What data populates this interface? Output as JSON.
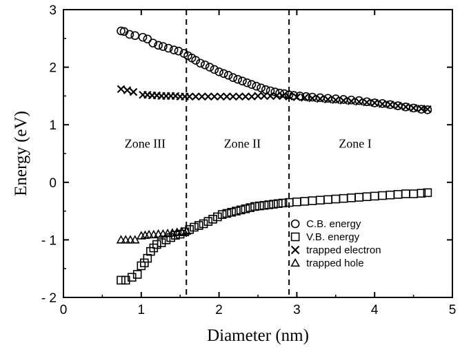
{
  "chart_data": {
    "type": "scatter",
    "xlabel": "Diameter  (nm)",
    "ylabel": "Energy (eV)",
    "xlim": [
      0,
      5
    ],
    "ylim": [
      -2,
      3
    ],
    "x_ticks": [
      "0",
      "1",
      "2",
      "3",
      "4",
      "5"
    ],
    "y_ticks": [
      "- 2",
      "- 1",
      "0",
      "1",
      "2",
      "3"
    ],
    "grid": false,
    "legend_position": "bottom-right",
    "vertical_lines": [
      1.58,
      2.9
    ],
    "annotations": [
      {
        "text": "Zone III",
        "x": 1.05,
        "y": 0.6
      },
      {
        "text": "Zone II",
        "x": 2.3,
        "y": 0.6
      },
      {
        "text": "Zone I",
        "x": 3.75,
        "y": 0.6
      }
    ],
    "series": [
      {
        "name": "C.B. energy",
        "marker": "circle",
        "x": [
          0.74,
          0.78,
          0.85,
          0.92,
          1.02,
          1.08,
          1.15,
          1.22,
          1.28,
          1.35,
          1.42,
          1.48,
          1.55,
          1.6,
          1.65,
          1.7,
          1.76,
          1.82,
          1.88,
          1.94,
          2.0,
          2.06,
          2.12,
          2.18,
          2.24,
          2.3,
          2.36,
          2.42,
          2.48,
          2.54,
          2.6,
          2.66,
          2.72,
          2.78,
          2.84,
          2.9,
          2.96,
          3.04,
          3.12,
          3.2,
          3.3,
          3.4,
          3.5,
          3.6,
          3.7,
          3.8,
          3.9,
          4.0,
          4.1,
          4.2,
          4.3,
          4.4,
          4.5,
          4.6,
          4.68
        ],
        "y": [
          2.63,
          2.62,
          2.57,
          2.55,
          2.52,
          2.49,
          2.42,
          2.38,
          2.36,
          2.33,
          2.3,
          2.28,
          2.24,
          2.2,
          2.16,
          2.12,
          2.07,
          2.04,
          2.0,
          1.96,
          1.92,
          1.89,
          1.86,
          1.82,
          1.79,
          1.76,
          1.73,
          1.7,
          1.67,
          1.64,
          1.61,
          1.59,
          1.57,
          1.55,
          1.54,
          1.52,
          1.51,
          1.5,
          1.49,
          1.48,
          1.47,
          1.46,
          1.45,
          1.44,
          1.43,
          1.42,
          1.4,
          1.38,
          1.37,
          1.35,
          1.33,
          1.31,
          1.29,
          1.27,
          1.26
        ]
      },
      {
        "name": "V.B. energy",
        "marker": "square",
        "x": [
          0.74,
          0.8,
          0.88,
          0.95,
          1.0,
          1.04,
          1.08,
          1.12,
          1.16,
          1.2,
          1.26,
          1.32,
          1.38,
          1.44,
          1.5,
          1.56,
          1.62,
          1.68,
          1.74,
          1.8,
          1.86,
          1.92,
          1.98,
          2.04,
          2.1,
          2.16,
          2.22,
          2.28,
          2.34,
          2.4,
          2.46,
          2.52,
          2.58,
          2.64,
          2.7,
          2.76,
          2.82,
          2.9,
          3.0,
          3.1,
          3.2,
          3.3,
          3.4,
          3.5,
          3.6,
          3.7,
          3.8,
          3.9,
          4.0,
          4.1,
          4.2,
          4.3,
          4.4,
          4.5,
          4.6,
          4.68
        ],
        "y": [
          -1.7,
          -1.7,
          -1.65,
          -1.6,
          -1.45,
          -1.4,
          -1.32,
          -1.2,
          -1.14,
          -1.08,
          -1.05,
          -1.0,
          -0.96,
          -0.92,
          -0.9,
          -0.86,
          -0.82,
          -0.78,
          -0.75,
          -0.72,
          -0.68,
          -0.64,
          -0.6,
          -0.56,
          -0.54,
          -0.52,
          -0.5,
          -0.48,
          -0.46,
          -0.44,
          -0.42,
          -0.41,
          -0.4,
          -0.39,
          -0.38,
          -0.37,
          -0.36,
          -0.35,
          -0.34,
          -0.33,
          -0.32,
          -0.31,
          -0.3,
          -0.29,
          -0.28,
          -0.27,
          -0.26,
          -0.25,
          -0.24,
          -0.23,
          -0.22,
          -0.21,
          -0.2,
          -0.2,
          -0.19,
          -0.18
        ]
      },
      {
        "name": "trapped  electron",
        "marker": "cross",
        "x": [
          0.74,
          0.82,
          0.9,
          1.02,
          1.08,
          1.14,
          1.2,
          1.26,
          1.32,
          1.38,
          1.44,
          1.5,
          1.56,
          1.62,
          1.7,
          1.78,
          1.86,
          1.94,
          2.02,
          2.1,
          2.18,
          2.26,
          2.34,
          2.42,
          2.5,
          2.58,
          2.66,
          2.74,
          2.82,
          2.9,
          3.0,
          3.1,
          3.2,
          3.3,
          3.4,
          3.5,
          3.6,
          3.7,
          3.8,
          3.9,
          4.0,
          4.1,
          4.2,
          4.3,
          4.4,
          4.5,
          4.6,
          4.68
        ],
        "y": [
          1.62,
          1.6,
          1.57,
          1.52,
          1.52,
          1.51,
          1.51,
          1.5,
          1.5,
          1.5,
          1.5,
          1.49,
          1.49,
          1.49,
          1.49,
          1.49,
          1.49,
          1.49,
          1.49,
          1.49,
          1.49,
          1.49,
          1.49,
          1.49,
          1.5,
          1.5,
          1.5,
          1.5,
          1.5,
          1.49,
          1.48,
          1.47,
          1.46,
          1.45,
          1.44,
          1.43,
          1.42,
          1.41,
          1.4,
          1.39,
          1.38,
          1.36,
          1.35,
          1.33,
          1.31,
          1.29,
          1.28,
          1.27
        ]
      },
      {
        "name": "trapped  hole",
        "marker": "triangle",
        "x": [
          0.74,
          0.8,
          0.86,
          0.92,
          1.0,
          1.05,
          1.1,
          1.16,
          1.22,
          1.28,
          1.34,
          1.4,
          1.46,
          1.52,
          1.58
        ],
        "y": [
          -1.0,
          -1.0,
          -1.0,
          -1.0,
          -0.93,
          -0.92,
          -0.91,
          -0.91,
          -0.9,
          -0.9,
          -0.89,
          -0.88,
          -0.87,
          -0.86,
          -0.85
        ]
      }
    ]
  }
}
